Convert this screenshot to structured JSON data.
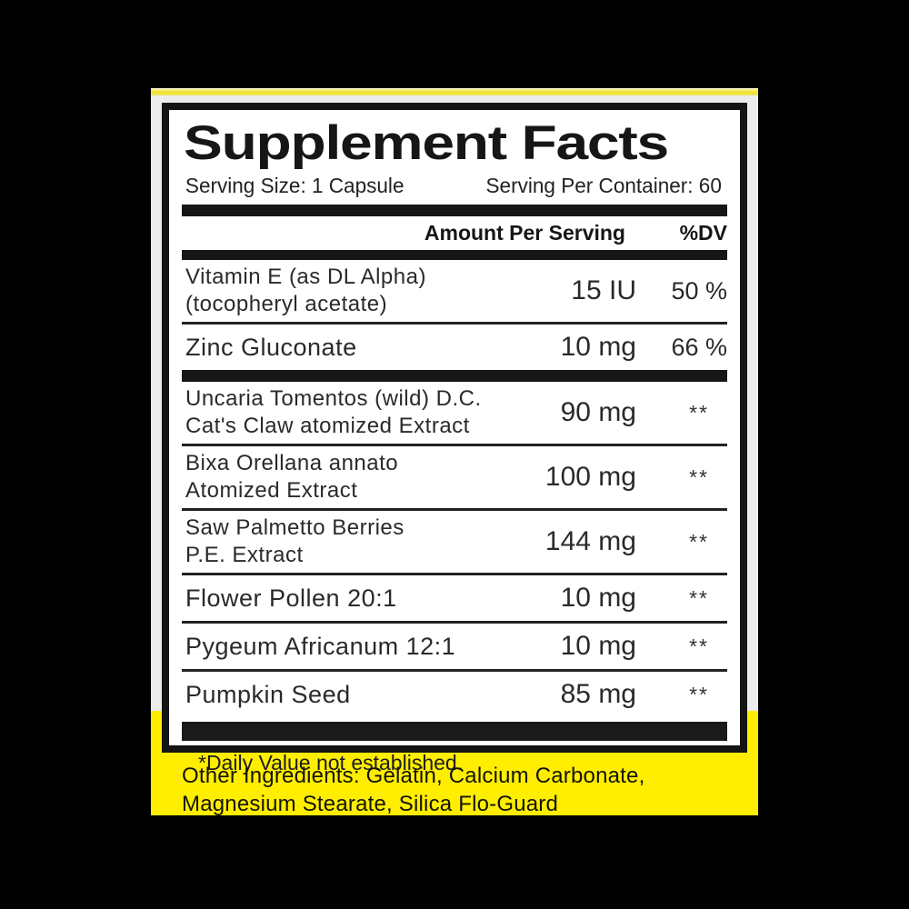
{
  "label": {
    "title": "Supplement Facts",
    "serving_size": "Serving Size: 1 Capsule",
    "servings_per_container": "Serving Per Container: 60",
    "col_amount": "Amount Per Serving",
    "col_dv": "%DV",
    "rows": [
      {
        "name_line1": "Vitamin E (as DL Alpha)",
        "name_line2": "(tocopheryl acetate)",
        "amount": "15 IU",
        "dv": "50 %"
      },
      {
        "name_line1": "Zinc Gluconate",
        "name_line2": "",
        "amount": "10 mg",
        "dv": "66 %"
      },
      {
        "name_line1": "Uncaria Tomentos (wild) D.C.",
        "name_line2": "Cat's Claw atomized Extract",
        "amount": "90 mg",
        "dv": "**"
      },
      {
        "name_line1": "Bixa Orellana annato",
        "name_line2": "Atomized Extract",
        "amount": "100 mg",
        "dv": "**"
      },
      {
        "name_line1": "Saw Palmetto Berries",
        "name_line2": "P.E. Extract",
        "amount": "144 mg",
        "dv": "**"
      },
      {
        "name_line1": "Flower Pollen 20:1",
        "name_line2": "",
        "amount": "10 mg",
        "dv": "**"
      },
      {
        "name_line1": "Pygeum Africanum 12:1",
        "name_line2": "",
        "amount": "10 mg",
        "dv": "**"
      },
      {
        "name_line1": "Pumpkin Seed",
        "name_line2": "",
        "amount": "85 mg",
        "dv": "**"
      }
    ],
    "footnote": "*Daily Value not established."
  },
  "other_ingredients": {
    "line1": "Other Ingredients: Gelatin, Calcium Carbonate,",
    "line2": "Magnesium Stearate, Silica Flo-Guard"
  },
  "colors": {
    "accent_yellow": "#ffee00",
    "top_strip_yellow": "#f2e434",
    "panel_gray": "#ececec",
    "background_black": "#000000",
    "text_dark": "#2a2a2a"
  }
}
